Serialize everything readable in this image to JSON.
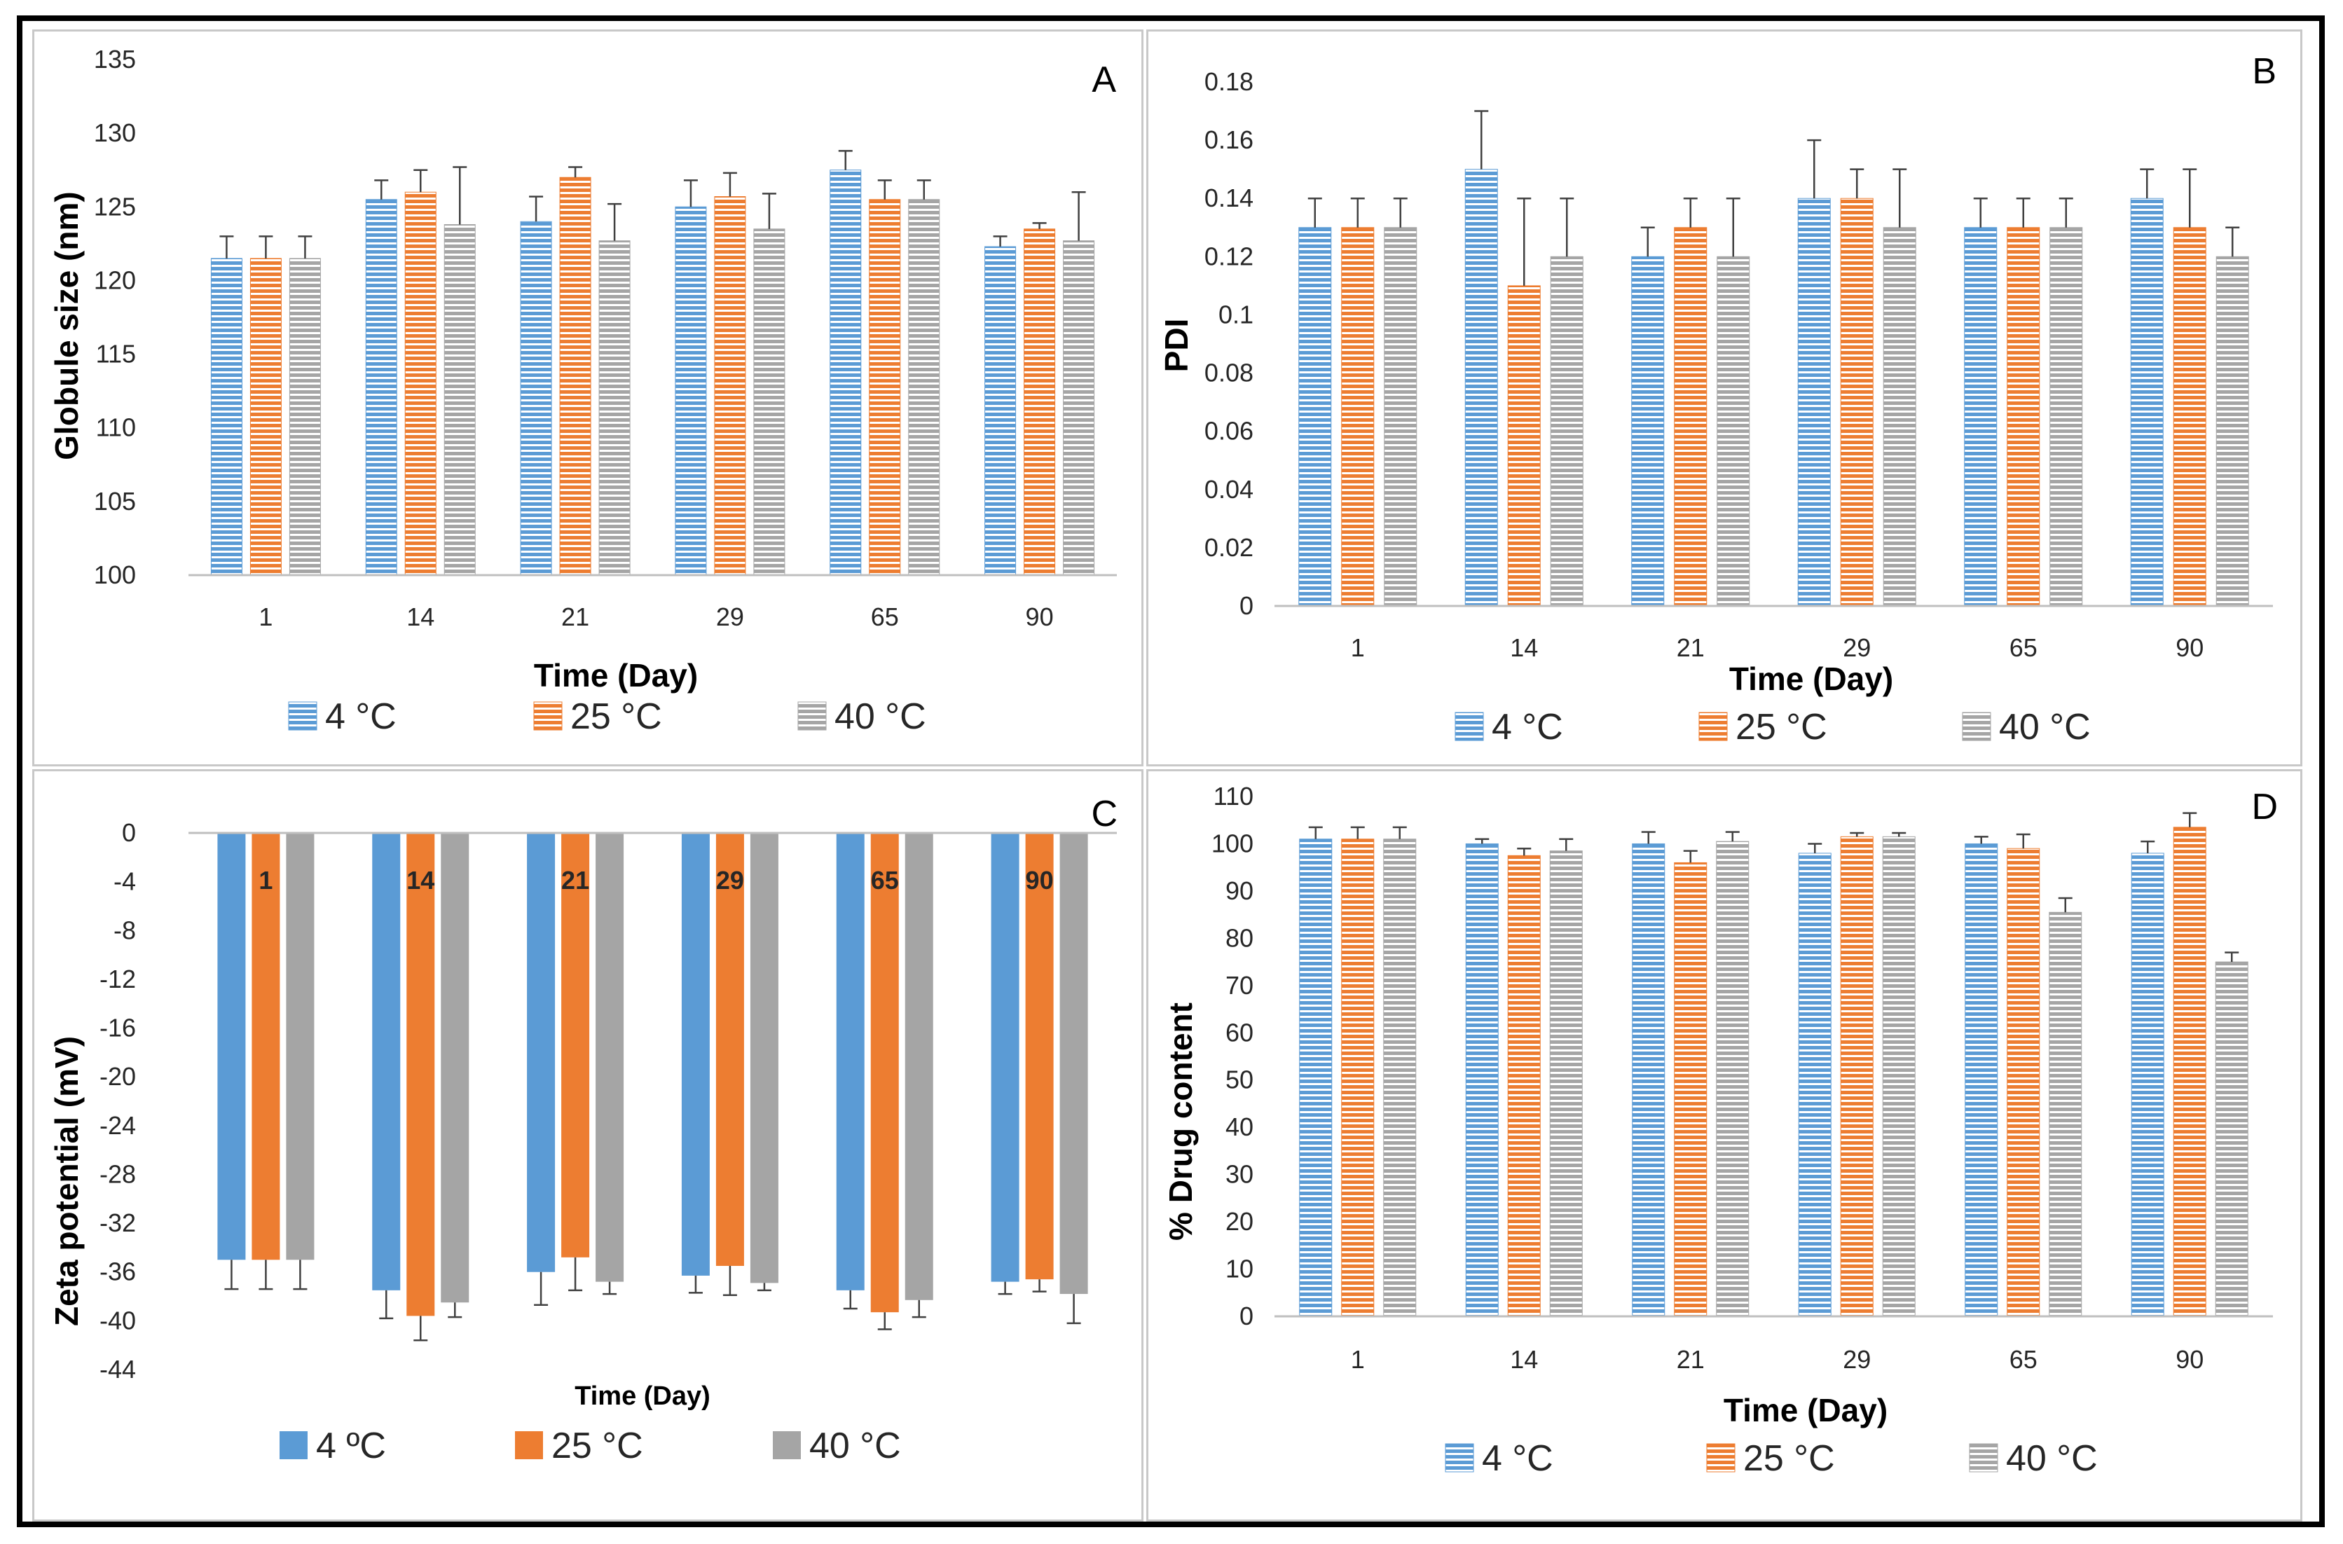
{
  "colors": {
    "blue": "#5B9BD5",
    "orange": "#ED7D31",
    "gray": "#A5A5A5",
    "axis": "#bfbfbf",
    "error": "#404040"
  },
  "chart_data": [
    {
      "panel": "A",
      "type": "bar",
      "xlabel": "Time (Day)",
      "ylabel": "Globule size (nm)",
      "categories": [
        "1",
        "14",
        "21",
        "29",
        "65",
        "90"
      ],
      "ylim": [
        100,
        135
      ],
      "yticks": [
        "135",
        "130",
        "125",
        "120",
        "115",
        "110",
        "105",
        "100"
      ],
      "series": [
        {
          "name": "4 °C",
          "values": [
            121.5,
            125.5,
            124.0,
            125.0,
            127.5,
            122.3
          ],
          "errors": [
            1.5,
            1.3,
            1.7,
            1.8,
            1.3,
            0.7
          ]
        },
        {
          "name": "25 °C",
          "values": [
            121.5,
            126.0,
            127.0,
            125.7,
            125.5,
            123.5
          ],
          "errors": [
            1.5,
            1.5,
            0.7,
            1.6,
            1.3,
            0.4
          ]
        },
        {
          "name": "40 °C",
          "values": [
            121.5,
            123.8,
            122.7,
            123.5,
            125.5,
            122.7
          ],
          "errors": [
            1.5,
            3.9,
            2.5,
            2.4,
            1.3,
            3.3
          ]
        }
      ]
    },
    {
      "panel": "B",
      "type": "bar",
      "xlabel": "Time (Day)",
      "ylabel": "PDI",
      "categories": [
        "1",
        "14",
        "21",
        "29",
        "65",
        "90"
      ],
      "ylim": [
        0,
        0.18
      ],
      "yticks": [
        "0.18",
        "0.16",
        "0.14",
        "0.12",
        "0.1",
        "0.08",
        "0.06",
        "0.04",
        "0.02",
        "0"
      ],
      "series": [
        {
          "name": "4 °C",
          "values": [
            0.13,
            0.15,
            0.12,
            0.14,
            0.13,
            0.14
          ],
          "errors": [
            0.01,
            0.02,
            0.01,
            0.02,
            0.01,
            0.01
          ]
        },
        {
          "name": "25 °C",
          "values": [
            0.13,
            0.11,
            0.13,
            0.14,
            0.13,
            0.13
          ],
          "errors": [
            0.01,
            0.03,
            0.01,
            0.01,
            0.01,
            0.02
          ]
        },
        {
          "name": "40 °C",
          "values": [
            0.13,
            0.12,
            0.12,
            0.13,
            0.13,
            0.12
          ],
          "errors": [
            0.01,
            0.02,
            0.02,
            0.02,
            0.01,
            0.01
          ]
        }
      ]
    },
    {
      "panel": "C",
      "type": "bar",
      "xlabel": "Time (Day)",
      "ylabel": "Zeta potential (mV)",
      "categories": [
        "1",
        "14",
        "21",
        "29",
        "65",
        "90"
      ],
      "ylim": [
        -44,
        0
      ],
      "yticks": [
        "0",
        "-4",
        "-8",
        "-12",
        "-16",
        "-20",
        "-24",
        "-28",
        "-32",
        "-36",
        "-40",
        "-44"
      ],
      "series": [
        {
          "name": "4 ºC",
          "values": [
            -35.0,
            -37.5,
            -36.0,
            -36.3,
            -37.5,
            -36.8
          ],
          "errors": [
            2.4,
            2.3,
            2.7,
            1.4,
            1.5,
            1.0
          ]
        },
        {
          "name": "25 °C",
          "values": [
            -35.0,
            -39.6,
            -34.8,
            -35.5,
            -39.3,
            -36.6
          ],
          "errors": [
            2.4,
            2.0,
            2.7,
            2.4,
            1.4,
            1.0
          ]
        },
        {
          "name": "40 °C",
          "values": [
            -35.0,
            -38.5,
            -36.8,
            -36.9,
            -38.3,
            -37.8
          ],
          "errors": [
            2.4,
            1.2,
            1.0,
            0.6,
            1.4,
            2.4
          ]
        }
      ]
    },
    {
      "panel": "D",
      "type": "bar",
      "xlabel": "Time (Day)",
      "ylabel": "% Drug content",
      "categories": [
        "1",
        "14",
        "21",
        "29",
        "65",
        "90"
      ],
      "ylim": [
        0,
        110
      ],
      "yticks": [
        "110",
        "100",
        "90",
        "80",
        "70",
        "60",
        "50",
        "40",
        "30",
        "20",
        "10",
        "0"
      ],
      "series": [
        {
          "name": "4 °C",
          "values": [
            101.0,
            100.0,
            100.0,
            98.0,
            100.0,
            98.0
          ],
          "errors": [
            2.5,
            1.0,
            2.5,
            2.0,
            1.5,
            2.5
          ]
        },
        {
          "name": "25 °C",
          "values": [
            101.0,
            97.5,
            96.0,
            101.5,
            99.0,
            103.5
          ],
          "errors": [
            2.5,
            1.5,
            2.5,
            0.8,
            3.0,
            3.0
          ]
        },
        {
          "name": "40 °C",
          "values": [
            101.0,
            98.5,
            100.5,
            101.5,
            85.5,
            75.0
          ],
          "errors": [
            2.5,
            2.5,
            2.0,
            0.8,
            3.0,
            2.0
          ]
        }
      ]
    }
  ]
}
